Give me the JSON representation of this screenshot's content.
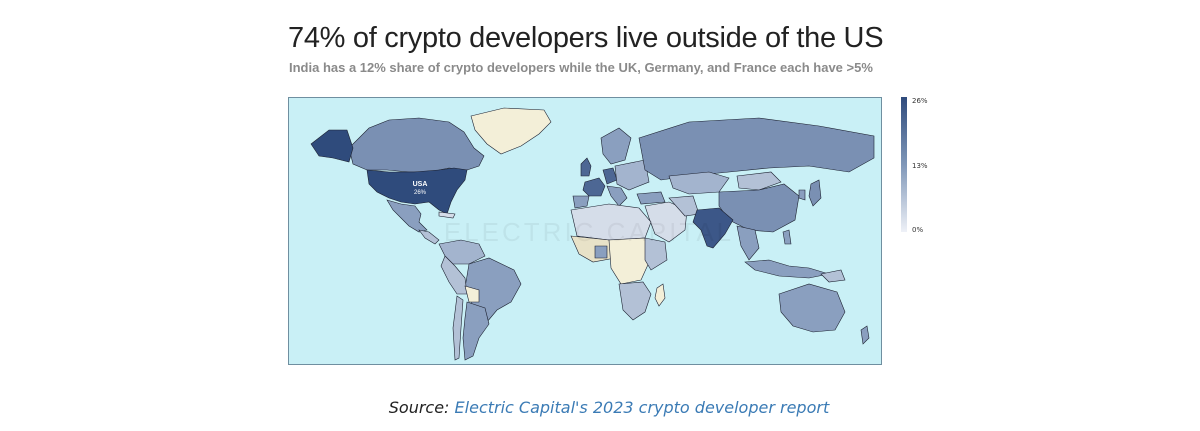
{
  "title": "74% of crypto developers live outside of the US",
  "subtitle": "India has a 12% share of crypto developers while the UK, Germany, and France each have >5%",
  "map": {
    "type": "choropleth",
    "metric": "share of crypto developers",
    "ocean_color": "#c9f0f6",
    "no_data_color": "#f3efd8",
    "scale": {
      "min_label": "0%",
      "mid_label": "13%",
      "max_label": "26%",
      "low_color": "#eef1f7",
      "mid_color": "#7f97b8",
      "high_color": "#2f4b7c"
    },
    "highlight": {
      "name": "USA",
      "value_label": "26%"
    },
    "watermark": "ELECTRIC CAPITAL"
  },
  "source": {
    "prefix": "Source:",
    "link_text": "Electric Capital's 2023 crypto developer report"
  }
}
